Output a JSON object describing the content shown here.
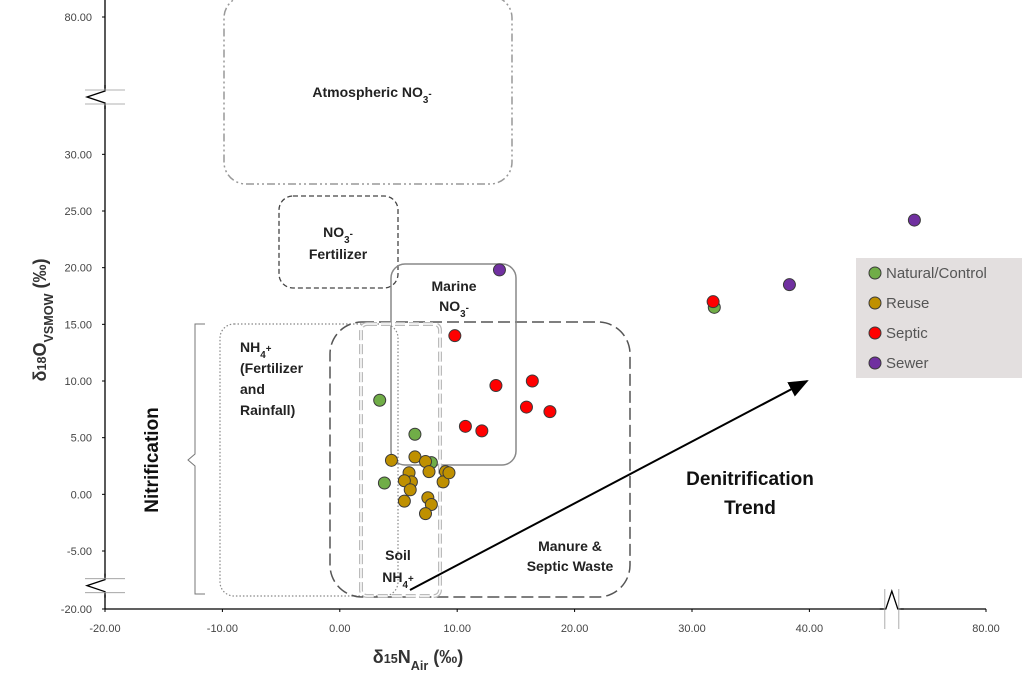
{
  "chart_data": {
    "type": "scatter",
    "x_label": [
      {
        "text": "δ"
      },
      {
        "text": "15",
        "shift": "sup"
      },
      {
        "text": "N"
      },
      {
        "text": "Air",
        "shift": "sub"
      },
      {
        "text": " (‰)"
      }
    ],
    "y_label": [
      {
        "text": "δ"
      },
      {
        "text": "18",
        "shift": "sup"
      },
      {
        "text": "O"
      },
      {
        "text": "VSMOW",
        "shift": "sub"
      },
      {
        "text": "  (‰)"
      }
    ],
    "xlim": [
      -20,
      80
    ],
    "ylim": [
      -20,
      80
    ],
    "xbreaks": [
      [
        46,
        73
      ]
    ],
    "ybreaks": [
      [
        -19,
        -7
      ],
      [
        34,
        74
      ]
    ],
    "xticks": [
      {
        "value": -20,
        "label": "-20.00"
      },
      {
        "value": -10,
        "label": "-10.00"
      },
      {
        "value": 0,
        "label": "0.00"
      },
      {
        "value": 10,
        "label": "10.00"
      },
      {
        "value": 20,
        "label": "20.00"
      },
      {
        "value": 30,
        "label": "30.00"
      },
      {
        "value": 40,
        "label": "40.00"
      },
      {
        "value": 80,
        "label": "80.00"
      }
    ],
    "yticks": [
      {
        "value": -20,
        "label": "-20.00"
      },
      {
        "value": -5,
        "label": "-5.00"
      },
      {
        "value": 0,
        "label": "0.00"
      },
      {
        "value": 5,
        "label": "5.00"
      },
      {
        "value": 10,
        "label": "10.00"
      },
      {
        "value": 15,
        "label": "15.00"
      },
      {
        "value": 20,
        "label": "20.00"
      },
      {
        "value": 25,
        "label": "25.00"
      },
      {
        "value": 30,
        "label": "30.00"
      },
      {
        "value": 80,
        "label": "80.00"
      }
    ],
    "legend": "right",
    "series": [
      {
        "name": "Natural/Control",
        "color": "#70ad47",
        "x": [
          3.4,
          6.4,
          3.8,
          7.8,
          31.9
        ],
        "values": [
          8.3,
          5.3,
          1.0,
          2.8,
          16.5
        ]
      },
      {
        "name": "Reuse",
        "color": "#bf9000",
        "x": [
          4.4,
          6.4,
          7.3,
          5.9,
          7.6,
          9.0,
          6.1,
          5.5,
          6.0,
          8.8,
          5.5,
          7.5,
          7.8,
          7.3,
          9.3
        ],
        "values": [
          3.0,
          3.3,
          2.9,
          1.9,
          2.0,
          2.0,
          1.1,
          1.2,
          0.4,
          1.1,
          -0.6,
          -0.3,
          -0.9,
          -1.7,
          1.9
        ]
      },
      {
        "name": "Septic",
        "color": "#ff0000",
        "x": [
          9.8,
          13.3,
          16.4,
          15.9,
          17.9,
          10.7,
          12.1,
          31.8
        ],
        "values": [
          14.0,
          9.6,
          10.0,
          7.7,
          7.3,
          6.0,
          5.6,
          17.0
        ]
      },
      {
        "name": "Sewer",
        "color": "#7030a0",
        "x": [
          13.6,
          38.3,
          73.9
        ],
        "values": [
          19.8,
          18.5,
          24.2
        ]
      }
    ],
    "annotations": [
      {
        "lines": [
          [
            {
              "text": "Atmospheric NO"
            },
            {
              "text": "3",
              "shift": "sub"
            },
            {
              "text": "-",
              "shift": "sup"
            }
          ]
        ]
      },
      {
        "lines": [
          [
            {
              "text": "NO"
            },
            {
              "text": "3",
              "shift": "sub"
            },
            {
              "text": "-",
              "shift": "sup"
            }
          ],
          [
            {
              "text": "Fertilizer"
            }
          ]
        ]
      },
      {
        "lines": [
          [
            {
              "text": "NH"
            },
            {
              "text": "4",
              "shift": "sub"
            },
            {
              "text": "+",
              "shift": "sup"
            }
          ],
          [
            {
              "text": "(Fertilizer"
            }
          ],
          [
            {
              "text": "and"
            }
          ],
          [
            {
              "text": "Rainfall)"
            }
          ]
        ]
      },
      {
        "lines": [
          [
            {
              "text": "Marine"
            }
          ],
          [
            {
              "text": "NO"
            },
            {
              "text": "3",
              "shift": "sub"
            },
            {
              "text": "-",
              "shift": "sup"
            }
          ]
        ]
      },
      {
        "lines": [
          [
            {
              "text": "Soil"
            }
          ],
          [
            {
              "text": "NH"
            },
            {
              "text": "4",
              "shift": "sub"
            },
            {
              "text": "+",
              "shift": "sup"
            }
          ]
        ]
      },
      {
        "lines": [
          [
            {
              "text": "Manure &"
            }
          ],
          [
            {
              "text": "Septic Waste"
            }
          ]
        ]
      },
      {
        "lines": [
          [
            {
              "text": "Denitrification"
            }
          ],
          [
            {
              "text": "Trend"
            }
          ]
        ]
      },
      {
        "lines": [
          [
            {
              "text": "Nitrification"
            }
          ]
        ]
      }
    ]
  }
}
